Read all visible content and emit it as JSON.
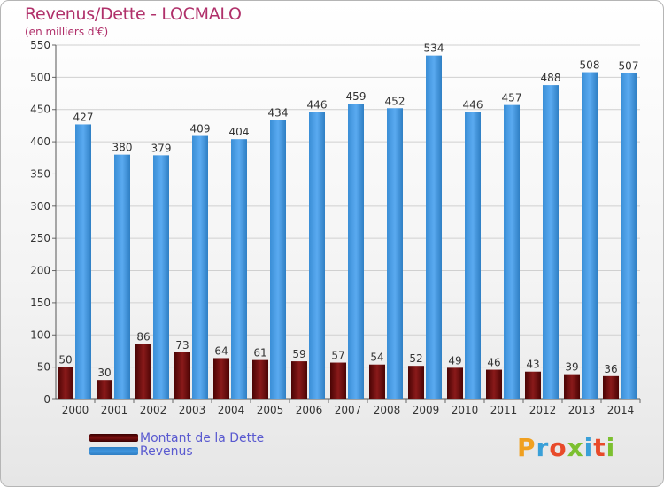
{
  "title": "Revenus/Dette - LOCMALO",
  "subtitle": "(en milliers d'€)",
  "logo": {
    "text": "Proxiti",
    "colors": [
      "#f0a020",
      "#3aa0d8",
      "#e84a2a",
      "#7cc030",
      "#3aa0d8",
      "#e84a2a",
      "#7cc030"
    ]
  },
  "legend": [
    {
      "label": "Montant de la Dette",
      "color": "#7a1010"
    },
    {
      "label": "Revenus",
      "color": "#3f95dd"
    }
  ],
  "chart_data": {
    "type": "bar",
    "title": "Revenus/Dette - LOCMALO",
    "subtitle": "(en milliers d'€)",
    "categories": [
      "2000",
      "2001",
      "2002",
      "2003",
      "2004",
      "2005",
      "2006",
      "2007",
      "2008",
      "2009",
      "2010",
      "2011",
      "2012",
      "2013",
      "2014"
    ],
    "series": [
      {
        "name": "Montant de la Dette",
        "color": "#7a1010",
        "values": [
          50,
          30,
          86,
          73,
          64,
          61,
          59,
          57,
          54,
          52,
          49,
          46,
          43,
          39,
          36
        ]
      },
      {
        "name": "Revenus",
        "color": "#3f95dd",
        "values": [
          427,
          380,
          379,
          409,
          404,
          434,
          446,
          459,
          452,
          534,
          446,
          457,
          488,
          508,
          507
        ]
      }
    ],
    "yticks": [
      0,
      50,
      100,
      150,
      200,
      250,
      300,
      350,
      400,
      450,
      500,
      550
    ],
    "ylim": [
      0,
      550
    ],
    "grid": true,
    "legend_position": "bottom-left"
  }
}
